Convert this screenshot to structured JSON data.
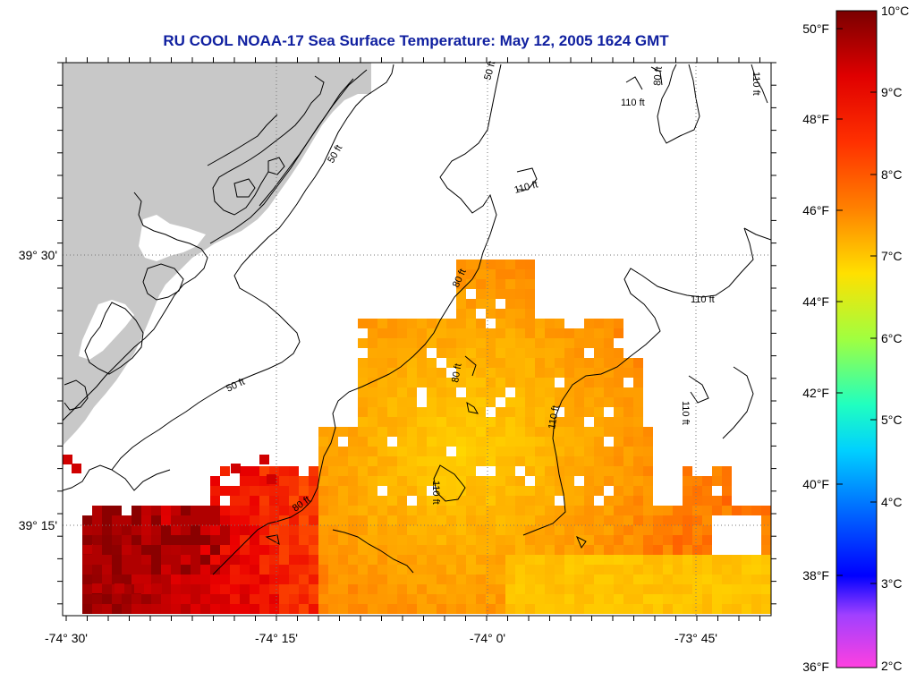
{
  "title": "RU COOL  NOAA-17  Sea Surface Temperature:  May 12, 2005 1624 GMT",
  "lon_ticks": [
    "-74° 30'",
    "-74° 15'",
    "-74° 0'",
    "-73° 45'"
  ],
  "lat_ticks": [
    "39° 30'",
    "39° 15'"
  ],
  "colorbar": {
    "fahrenheit": [
      "50°F",
      "48°F",
      "46°F",
      "44°F",
      "42°F",
      "40°F",
      "38°F",
      "36°F"
    ],
    "celsius": [
      "10°C",
      "9°C",
      "8°C",
      "7°C",
      "6°C",
      "5°C",
      "4°C",
      "3°C",
      "2°C"
    ]
  },
  "contours": {
    "c50a": "50 ft",
    "c50b": "50 ft",
    "c50c": "50 ft",
    "c80a": "80 ft",
    "c80b": "80 ft",
    "c80c": "80 ft",
    "c80d": "80 ft",
    "c110a": "110 ft",
    "c110b": "110 ft",
    "c110c": "110 ft",
    "c110d": "110 ft",
    "c110e": "110 ft",
    "c110f": "110 ft",
    "c110g": "110 ft"
  },
  "colors": {
    "title": "#1020a0",
    "land": "#c8c8c8"
  }
}
